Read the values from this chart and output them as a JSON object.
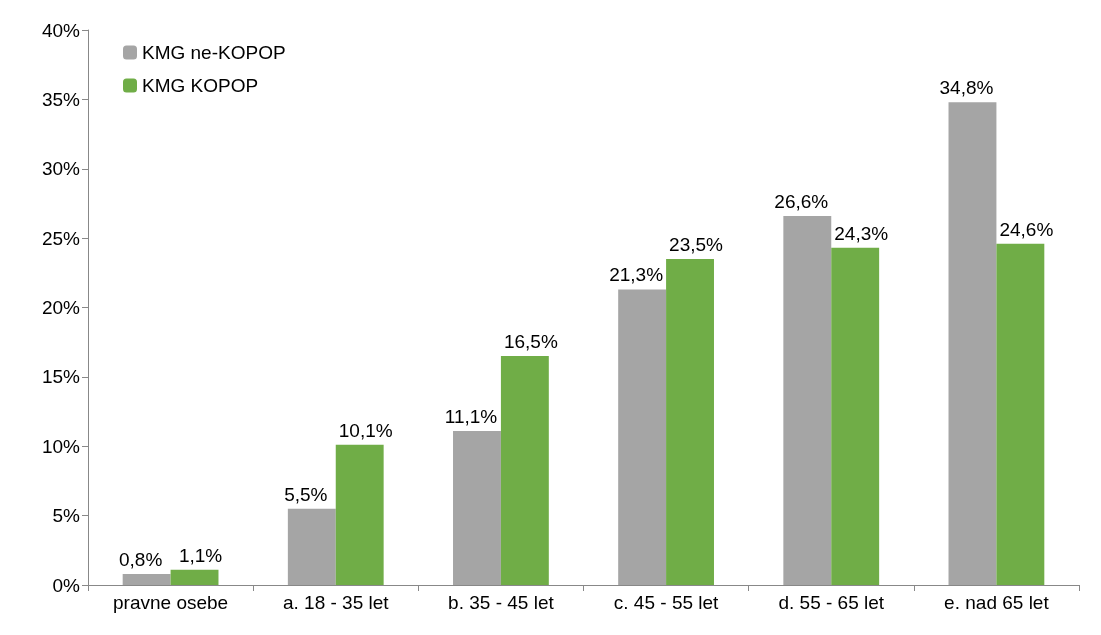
{
  "chart_data": {
    "type": "bar",
    "categories": [
      "pravne osebe",
      "a. 18 - 35 let",
      "b. 35 - 45 let",
      "c. 45 - 55 let",
      "d. 55 - 65 let",
      "e. nad 65 let"
    ],
    "series": [
      {
        "name": "KMG ne-KOPOP",
        "color": "#a5a5a5",
        "values": [
          0.8,
          5.5,
          11.1,
          21.3,
          26.6,
          34.8
        ],
        "value_labels": [
          "0,8%",
          "5,5%",
          "11,1%",
          "21,3%",
          "26,6%",
          "34,8%"
        ]
      },
      {
        "name": "KMG KOPOP",
        "color": "#70ad47",
        "values": [
          1.1,
          10.1,
          16.5,
          23.5,
          24.3,
          24.6
        ],
        "value_labels": [
          "1,1%",
          "10,1%",
          "16,5%",
          "23,5%",
          "24,3%",
          "24,6%"
        ]
      }
    ],
    "ylim": [
      0,
      40
    ],
    "yticks": [
      {
        "value": 0,
        "label": "0%"
      },
      {
        "value": 5,
        "label": "5%"
      },
      {
        "value": 10,
        "label": "10%"
      },
      {
        "value": 15,
        "label": "15%"
      },
      {
        "value": 20,
        "label": "20%"
      },
      {
        "value": 25,
        "label": "25%"
      },
      {
        "value": 30,
        "label": "30%"
      },
      {
        "value": 35,
        "label": "35%"
      },
      {
        "value": 40,
        "label": "40%"
      }
    ],
    "grid": false,
    "legend": "top left"
  }
}
